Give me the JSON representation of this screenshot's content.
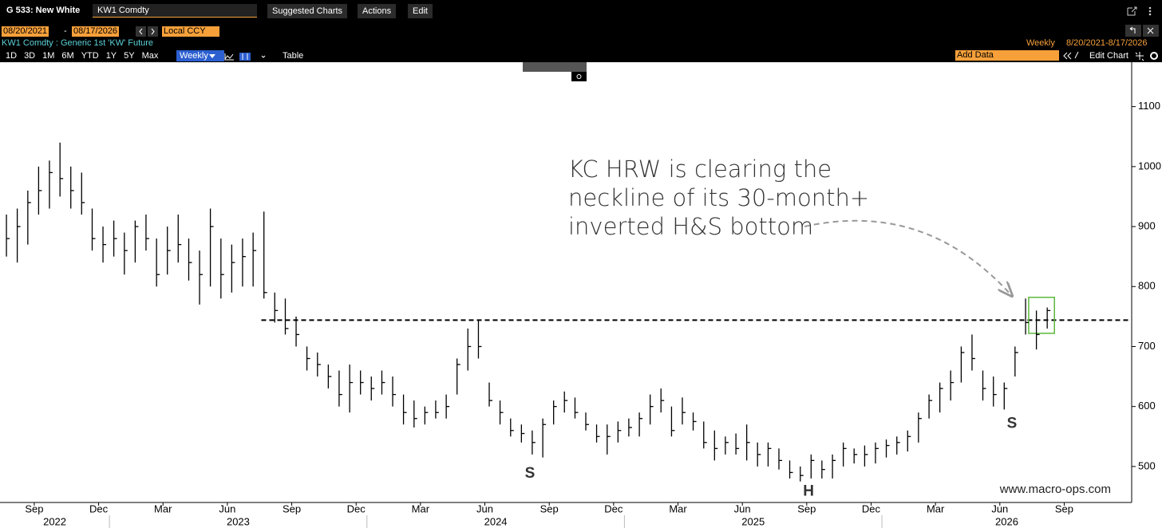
{
  "header": {
    "title": "G 533: New White",
    "ticker": "KW1 Comdty",
    "menus": [
      "Suggested Charts",
      "Actions",
      "Edit"
    ],
    "start_date": "08/20/2021",
    "date_separator": "-",
    "end_date": "08/17/2026",
    "currency": "Local CCY",
    "security": "KW1 Comdty : Generic 1st 'KW' Future",
    "frequency": "Weekly",
    "date_range": "8/20/2021-8/17/2026",
    "periods": [
      "1D",
      "3D",
      "1M",
      "6M",
      "YTD",
      "1Y",
      "5Y",
      "Max"
    ],
    "period_selected": "Weekly",
    "table": "Table",
    "add_data": "Add Data",
    "edit_chart": "Edit Chart"
  },
  "chart_data": {
    "type": "ohlc",
    "color": "#000000",
    "x": [
      2022.6,
      2022.642,
      2022.683,
      2022.725,
      2022.767,
      2022.808,
      2022.85,
      2022.892,
      2022.933,
      2022.975,
      2023.017,
      2023.058,
      2023.1,
      2023.142,
      2023.183,
      2023.225,
      2023.267,
      2023.308,
      2023.35,
      2023.392,
      2023.433,
      2023.475,
      2023.517,
      2023.558,
      2023.6,
      2023.642,
      2023.683,
      2023.725,
      2023.767,
      2023.808,
      2023.85,
      2023.892,
      2023.933,
      2023.975,
      2024.017,
      2024.058,
      2024.1,
      2024.142,
      2024.183,
      2024.225,
      2024.267,
      2024.308,
      2024.35,
      2024.392,
      2024.433,
      2024.475,
      2024.517,
      2024.558,
      2024.6,
      2024.642,
      2024.683,
      2024.725,
      2024.767,
      2024.808,
      2024.85,
      2024.892,
      2024.933,
      2024.975,
      2025.017,
      2025.058,
      2025.1,
      2025.142,
      2025.183,
      2025.225,
      2025.267,
      2025.308,
      2025.35,
      2025.392,
      2025.433,
      2025.475,
      2025.517,
      2025.558,
      2025.6,
      2025.642,
      2025.683,
      2025.725,
      2025.767,
      2025.808,
      2025.85,
      2025.892,
      2025.933,
      2025.975,
      2026.017,
      2026.058,
      2026.1,
      2026.142,
      2026.183,
      2026.225,
      2026.267,
      2026.308,
      2026.35,
      2026.392,
      2026.433,
      2026.475,
      2026.517,
      2026.558,
      2026.6,
      2026.642
    ],
    "high": [
      920,
      930,
      960,
      1000,
      1010,
      1040,
      1000,
      990,
      930,
      900,
      910,
      890,
      910,
      920,
      880,
      900,
      920,
      880,
      860,
      930,
      880,
      870,
      880,
      890,
      925,
      790,
      780,
      750,
      700,
      690,
      670,
      660,
      670,
      660,
      650,
      660,
      650,
      620,
      610,
      600,
      610,
      620,
      680,
      730,
      745,
      640,
      610,
      580,
      570,
      560,
      580,
      610,
      625,
      615,
      590,
      570,
      570,
      575,
      580,
      590,
      620,
      630,
      600,
      615,
      590,
      575,
      560,
      550,
      555,
      570,
      540,
      540,
      530,
      510,
      500,
      520,
      510,
      520,
      540,
      530,
      535,
      540,
      545,
      550,
      560,
      590,
      620,
      640,
      660,
      700,
      720,
      660,
      650,
      640,
      700,
      780,
      760,
      765
    ],
    "low": [
      850,
      840,
      870,
      920,
      930,
      950,
      930,
      920,
      860,
      840,
      850,
      820,
      840,
      860,
      800,
      820,
      840,
      810,
      770,
      800,
      780,
      790,
      800,
      800,
      780,
      740,
      720,
      700,
      660,
      650,
      630,
      600,
      590,
      620,
      610,
      620,
      600,
      570,
      565,
      570,
      580,
      580,
      620,
      660,
      680,
      600,
      570,
      550,
      540,
      520,
      515,
      570,
      590,
      580,
      560,
      540,
      520,
      540,
      550,
      550,
      570,
      590,
      550,
      570,
      560,
      530,
      510,
      520,
      520,
      510,
      500,
      500,
      495,
      480,
      475,
      480,
      480,
      480,
      500,
      505,
      500,
      505,
      515,
      520,
      525,
      540,
      580,
      590,
      610,
      640,
      660,
      610,
      600,
      595,
      650,
      720,
      695,
      730
    ],
    "close": [
      880,
      900,
      940,
      960,
      990,
      980,
      960,
      940,
      880,
      870,
      880,
      860,
      900,
      880,
      820,
      860,
      870,
      840,
      820,
      900,
      820,
      840,
      850,
      860,
      790,
      760,
      730,
      720,
      680,
      670,
      650,
      620,
      640,
      640,
      630,
      640,
      620,
      590,
      580,
      590,
      590,
      600,
      670,
      700,
      700,
      610,
      590,
      560,
      555,
      540,
      570,
      600,
      610,
      590,
      570,
      550,
      550,
      560,
      565,
      580,
      600,
      610,
      560,
      590,
      575,
      540,
      530,
      540,
      530,
      540,
      520,
      530,
      510,
      490,
      485,
      510,
      495,
      510,
      530,
      520,
      520,
      530,
      535,
      540,
      550,
      580,
      610,
      630,
      640,
      690,
      680,
      630,
      620,
      630,
      690,
      740,
      720,
      760
    ],
    "xlim": [
      2022.575,
      2026.97
    ],
    "ylim": [
      440,
      1174
    ],
    "yticks": [
      500,
      600,
      700,
      800,
      900,
      1000,
      1100
    ],
    "xticks": [
      {
        "value": 2022.708,
        "label": "Sep"
      },
      {
        "value": 2022.958,
        "label": "Dec"
      },
      {
        "value": 2023.208,
        "label": "Mar"
      },
      {
        "value": 2023.458,
        "label": "Jun"
      },
      {
        "value": 2023.708,
        "label": "Sep"
      },
      {
        "value": 2023.958,
        "label": "Dec"
      },
      {
        "value": 2024.208,
        "label": "Mar"
      },
      {
        "value": 2024.458,
        "label": "Jun"
      },
      {
        "value": 2024.708,
        "label": "Sep"
      },
      {
        "value": 2024.958,
        "label": "Dec"
      },
      {
        "value": 2025.208,
        "label": "Mar"
      },
      {
        "value": 2025.458,
        "label": "Jun"
      },
      {
        "value": 2025.708,
        "label": "Sep"
      },
      {
        "value": 2025.958,
        "label": "Dec"
      },
      {
        "value": 2026.208,
        "label": "Mar"
      },
      {
        "value": 2026.458,
        "label": "Jun"
      },
      {
        "value": 2026.708,
        "label": "Sep"
      }
    ],
    "year_ticks": [
      {
        "value": 2022,
        "label": "2022"
      },
      {
        "value": 2023,
        "label": "2023"
      },
      {
        "value": 2024,
        "label": "2024"
      },
      {
        "value": 2025,
        "label": "2025"
      },
      {
        "value": 2026,
        "label": "2026"
      }
    ],
    "reference_line": {
      "value": 744,
      "x_start": 2023.59
    },
    "highlight_box": {
      "x": [
        2026.57,
        2026.67
      ],
      "y": [
        722,
        782
      ],
      "color": "#5cb83c"
    },
    "annotation": [
      "KC HRW is clearing the",
      "neckline of its 30-month+",
      "inverted H&S bottom"
    ],
    "labels": [
      {
        "text": "S",
        "x": 2024.633,
        "y": 488
      },
      {
        "text": "H",
        "x": 2025.715,
        "y": 458
      },
      {
        "text": "S",
        "x": 2026.505,
        "y": 571
      }
    ],
    "watermark": "www.macro-ops.com"
  }
}
